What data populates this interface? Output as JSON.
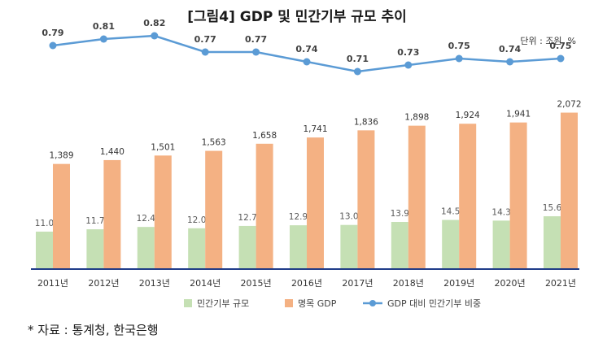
{
  "chart_data": {
    "type": "bar",
    "title": "[그림4] GDP 및 민간기부 규모 추이",
    "unit_note": "단위 : 조원, %",
    "categories": [
      "2011년",
      "2012년",
      "2013년",
      "2014년",
      "2015년",
      "2016년",
      "2017년",
      "2018년",
      "2019년",
      "2020년",
      "2021년"
    ],
    "series": [
      {
        "name": "민간기부 규모",
        "kind": "bar",
        "color": "#c5e0b4",
        "values": [
          11.0,
          11.7,
          12.4,
          12.0,
          12.7,
          12.9,
          13.0,
          13.9,
          14.5,
          14.3,
          15.6
        ],
        "labels": [
          "11.0",
          "11.7",
          "12.4",
          "12.0",
          "12.7",
          "12.9",
          "13.0",
          "13.9",
          "14.5",
          "14.3",
          "15.6"
        ]
      },
      {
        "name": "명목 GDP",
        "kind": "bar",
        "color": "#f4b183",
        "values": [
          1389,
          1440,
          1501,
          1563,
          1658,
          1741,
          1836,
          1898,
          1924,
          1941,
          2072
        ],
        "labels": [
          "1,389",
          "1,440",
          "1,501",
          "1,563",
          "1,658",
          "1,741",
          "1,836",
          "1,898",
          "1,924",
          "1,941",
          "2,072"
        ]
      },
      {
        "name": "GDP 대비 민간기부 비중",
        "kind": "line",
        "color": "#5b9bd5",
        "values": [
          0.79,
          0.81,
          0.82,
          0.77,
          0.77,
          0.74,
          0.71,
          0.73,
          0.75,
          0.74,
          0.75
        ],
        "labels": [
          "0.79",
          "0.81",
          "0.82",
          "0.77",
          "0.77",
          "0.74",
          "0.71",
          "0.73",
          "0.75",
          "0.74",
          "0.75"
        ]
      }
    ],
    "legend_position": "bottom",
    "grid": false
  },
  "source_note": "* 자료 : 통계청, 한국은행"
}
